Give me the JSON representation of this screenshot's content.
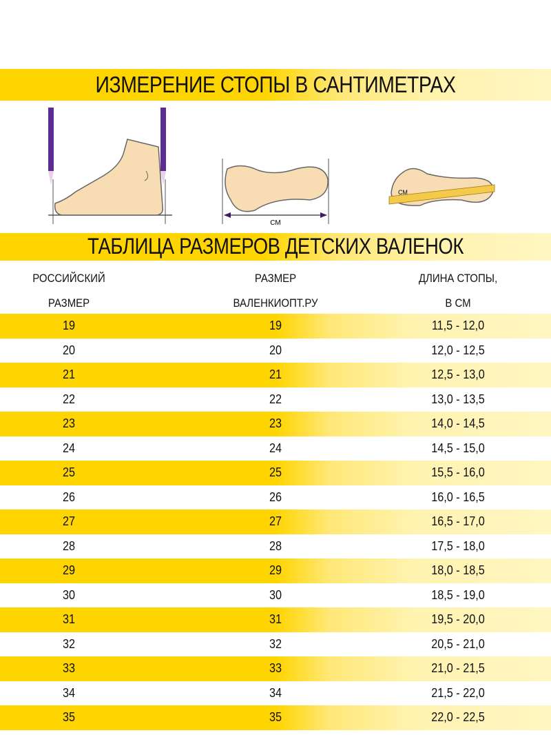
{
  "header_measure": "ИЗМЕРЕНИЕ СТОПЫ В САНТИМЕТРАХ",
  "illustration_labels": {
    "footprint_unit": "СМ",
    "ruler_unit": "СМ"
  },
  "header_table": "ТАБЛИЦА РАЗМЕРОВ ДЕТСКИХ ВАЛЕНОК",
  "columns": [
    {
      "line1": "РОССИЙСКИЙ",
      "line2": "РАЗМЕР"
    },
    {
      "line1": "РАЗМЕР",
      "line2": "ВАЛЕНКИОПТ.РУ"
    },
    {
      "line1": "ДЛИНА СТОПЫ,",
      "line2": "В СМ"
    }
  ],
  "rows": [
    [
      "19",
      "19",
      "11,5 - 12,0"
    ],
    [
      "20",
      "20",
      "12,0 - 12,5"
    ],
    [
      "21",
      "21",
      "12,5 - 13,0"
    ],
    [
      "22",
      "22",
      "13,0 - 13,5"
    ],
    [
      "23",
      "23",
      "14,0 - 14,5"
    ],
    [
      "24",
      "24",
      "14,5 - 15,0"
    ],
    [
      "25",
      "25",
      "15,5 - 16,0"
    ],
    [
      "26",
      "26",
      "16,0 - 16,5"
    ],
    [
      "27",
      "27",
      "16,5 - 17,0"
    ],
    [
      "28",
      "28",
      "17,5 - 18,0"
    ],
    [
      "29",
      "29",
      "18,0 - 18,5"
    ],
    [
      "30",
      "30",
      "18,5 - 19,0"
    ],
    [
      "31",
      "31",
      "19,5 - 20,0"
    ],
    [
      "32",
      "32",
      "20,5 - 21,0"
    ],
    [
      "33",
      "33",
      "21,0 - 21,5"
    ],
    [
      "34",
      "34",
      "21,5 - 22,0"
    ],
    [
      "35",
      "35",
      "22,0 - 22,5"
    ]
  ],
  "colors": {
    "band_yellow": "#FFD500",
    "band_light": "#FFF6C2",
    "foot_fill": "#F8DDB4",
    "pencil": "#5B2C91"
  }
}
